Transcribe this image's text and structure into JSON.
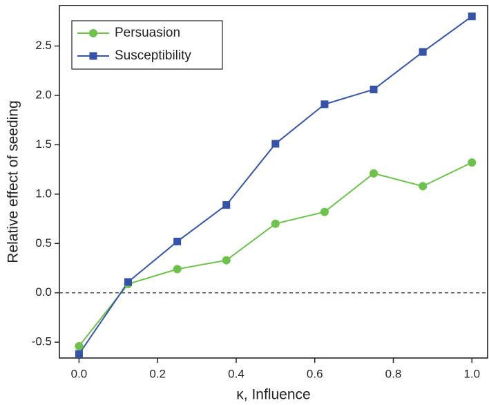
{
  "chart_data": {
    "type": "line",
    "xlabel": "κ, Influence",
    "ylabel": "Relative effect of seeding",
    "x": [
      0,
      0.125,
      0.25,
      0.375,
      0.5,
      0.625,
      0.75,
      0.875,
      1
    ],
    "series": [
      {
        "name": "Persuasion",
        "color": "#6cc24a",
        "marker": "circle",
        "values": [
          -0.54,
          0.09,
          0.24,
          0.33,
          0.7,
          0.82,
          1.21,
          1.08,
          1.32
        ]
      },
      {
        "name": "Susceptibility",
        "color": "#3553a8",
        "marker": "square",
        "values": [
          -0.62,
          0.11,
          0.52,
          0.89,
          1.51,
          1.91,
          2.06,
          2.44,
          2.8
        ]
      }
    ],
    "xlim": [
      -0.05,
      1.04
    ],
    "ylim": [
      -0.66,
      2.91
    ],
    "xticks": [
      {
        "value": 0,
        "label": "0.0"
      },
      0.2,
      0.4,
      0.6,
      0.8,
      {
        "value": 1,
        "label": "1.0"
      }
    ],
    "yticks": [
      -0.5,
      {
        "value": 0,
        "label": "0.0"
      },
      0.5,
      {
        "value": 1,
        "label": "1.0"
      },
      1.5,
      {
        "value": 2,
        "label": "2.0"
      },
      2.5
    ],
    "reference_line": 0,
    "legend": "upper left",
    "grid": false
  }
}
